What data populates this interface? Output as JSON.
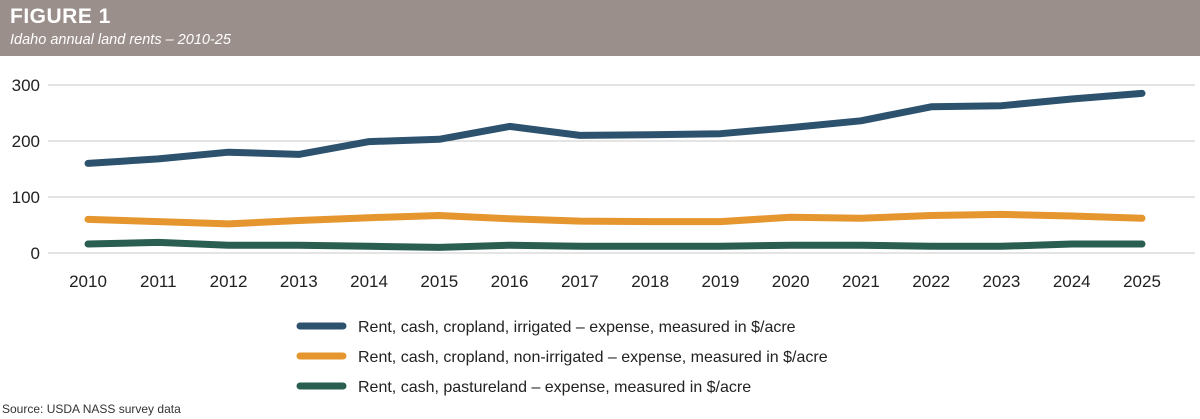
{
  "header": {
    "figure_label": "FIGURE 1",
    "subtitle": "Idaho annual land rents – 2010-25"
  },
  "source": "Source: USDA NASS survey data",
  "chart_data": {
    "type": "line",
    "x": [
      2010,
      2011,
      2012,
      2013,
      2014,
      2015,
      2016,
      2017,
      2018,
      2019,
      2020,
      2021,
      2022,
      2023,
      2024,
      2025
    ],
    "yticks": [
      0,
      100,
      200,
      300
    ],
    "ylim": [
      0,
      300
    ],
    "grid": true,
    "legend_position": "bottom",
    "series": [
      {
        "name": "Rent, cash, cropland, irrigated – expense, measured in $/acre",
        "color": "#2d526e",
        "values": [
          160,
          168,
          180,
          176,
          199,
          203,
          226,
          210,
          211,
          213,
          224,
          236,
          261,
          263,
          275,
          285
        ]
      },
      {
        "name": "Rent, cash, cropland, non-irrigated – expense, measured in $/acre",
        "color": "#e5962e",
        "values": [
          60,
          56,
          52,
          58,
          63,
          67,
          61,
          57,
          56,
          56,
          64,
          62,
          67,
          69,
          66,
          62
        ]
      },
      {
        "name": "Rent, cash, pastureland – expense, measured in $/acre",
        "color": "#2a5e50",
        "values": [
          16,
          19,
          14,
          14,
          12,
          10,
          14,
          12,
          12,
          12,
          14,
          14,
          12,
          12,
          16,
          16
        ]
      }
    ]
  }
}
